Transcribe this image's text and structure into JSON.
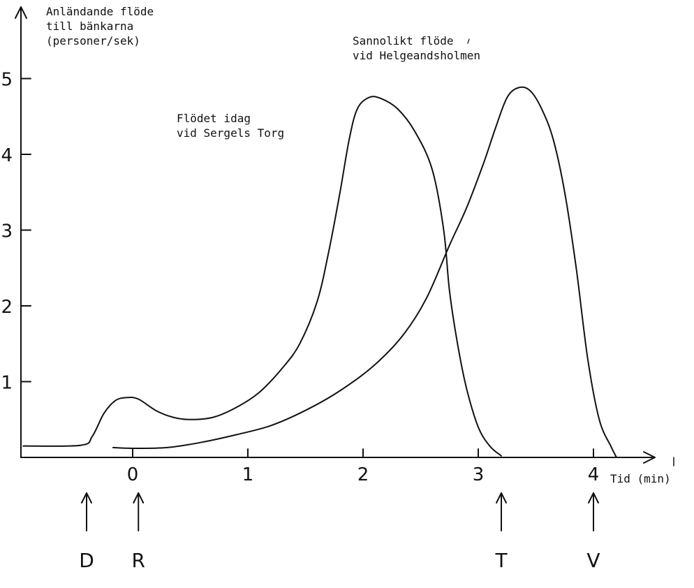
{
  "chart_data": {
    "type": "line",
    "ylabel": [
      "Anländande flöde",
      "till bänkarna",
      "(personer/sek)"
    ],
    "xlabel": "Tid (min)",
    "xlim": [
      -0.95,
      4.35
    ],
    "ylim": [
      0,
      5.5
    ],
    "x_ticks": [
      "0",
      "1",
      "2",
      "3",
      "4"
    ],
    "y_ticks": [
      "1",
      "2",
      "3",
      "4",
      "5"
    ],
    "grid": false,
    "series": [
      {
        "name": "Flödet idag vid Sergels Torg",
        "label_lines": [
          "Flödet idag",
          "vid Sergels Torg"
        ],
        "points": [
          [
            -0.95,
            0.15
          ],
          [
            -0.45,
            0.16
          ],
          [
            -0.35,
            0.28
          ],
          [
            -0.25,
            0.58
          ],
          [
            -0.15,
            0.75
          ],
          [
            -0.05,
            0.79
          ],
          [
            0.05,
            0.77
          ],
          [
            0.2,
            0.62
          ],
          [
            0.35,
            0.53
          ],
          [
            0.5,
            0.5
          ],
          [
            0.7,
            0.53
          ],
          [
            0.9,
            0.66
          ],
          [
            1.1,
            0.86
          ],
          [
            1.3,
            1.18
          ],
          [
            1.45,
            1.5
          ],
          [
            1.6,
            2.05
          ],
          [
            1.7,
            2.7
          ],
          [
            1.8,
            3.5
          ],
          [
            1.88,
            4.2
          ],
          [
            1.95,
            4.6
          ],
          [
            2.05,
            4.75
          ],
          [
            2.15,
            4.74
          ],
          [
            2.3,
            4.6
          ],
          [
            2.45,
            4.3
          ],
          [
            2.6,
            3.8
          ],
          [
            2.7,
            3.0
          ],
          [
            2.75,
            2.2
          ],
          [
            2.82,
            1.5
          ],
          [
            2.9,
            0.9
          ],
          [
            3.0,
            0.4
          ],
          [
            3.1,
            0.15
          ],
          [
            3.2,
            0.02
          ]
        ]
      },
      {
        "name": "Sannolikt flöde vid Helgeandsholmen",
        "label_lines": [
          "Sannolikt flöde",
          "vid Helgeandsholmen"
        ],
        "points": [
          [
            -0.17,
            0.13
          ],
          [
            0.0,
            0.12
          ],
          [
            0.3,
            0.13
          ],
          [
            0.6,
            0.2
          ],
          [
            0.9,
            0.3
          ],
          [
            1.2,
            0.42
          ],
          [
            1.5,
            0.62
          ],
          [
            1.8,
            0.88
          ],
          [
            2.1,
            1.22
          ],
          [
            2.35,
            1.62
          ],
          [
            2.55,
            2.1
          ],
          [
            2.75,
            2.8
          ],
          [
            2.9,
            3.3
          ],
          [
            3.05,
            3.9
          ],
          [
            3.15,
            4.35
          ],
          [
            3.25,
            4.75
          ],
          [
            3.35,
            4.88
          ],
          [
            3.45,
            4.84
          ],
          [
            3.55,
            4.6
          ],
          [
            3.65,
            4.2
          ],
          [
            3.75,
            3.5
          ],
          [
            3.85,
            2.5
          ],
          [
            3.95,
            1.3
          ],
          [
            4.05,
            0.5
          ],
          [
            4.15,
            0.15
          ],
          [
            4.2,
            0.0
          ]
        ]
      }
    ],
    "markers": [
      {
        "label": "D",
        "x": -0.4
      },
      {
        "label": "R",
        "x": 0.05
      },
      {
        "label": "T",
        "x": 3.2
      },
      {
        "label": "V",
        "x": 4.0
      }
    ]
  }
}
